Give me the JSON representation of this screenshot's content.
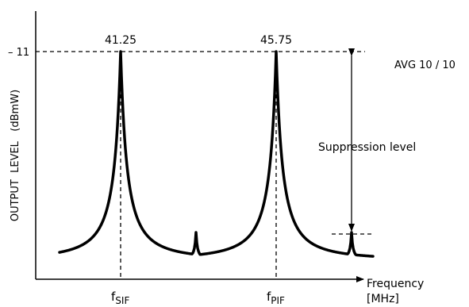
{
  "chart_data": {
    "type": "line",
    "title": "",
    "xlabel": "Frequency",
    "xlabel_unit": "[MHz]",
    "ylabel": "OUTPUT  LEVEL   (dBmW)",
    "y_tick_label": "– 11",
    "y_ref_value": -11,
    "avg_label": "AVG 10 / 10",
    "suppression_label": "Suppression level",
    "grid": false,
    "legend": "none",
    "peaks": [
      {
        "label": "41.25",
        "x_sub_main": "f",
        "x_sub": "SIF",
        "value": -11
      },
      {
        "label": "45.75",
        "x_sub_main": "f",
        "x_sub": "PIF",
        "value": -11
      }
    ],
    "spurious_peaks": 2
  }
}
